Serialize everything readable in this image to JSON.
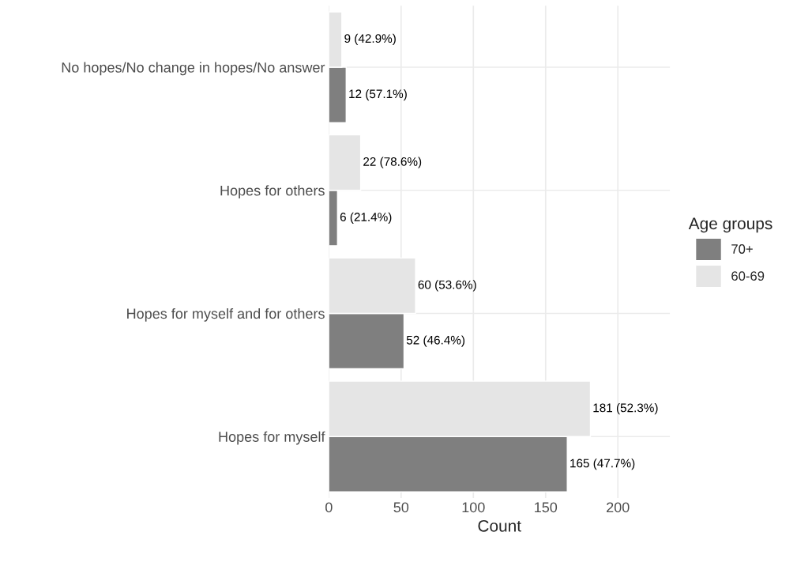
{
  "chart_data": {
    "type": "bar",
    "orientation": "horizontal",
    "xlabel": "Count",
    "legend_title": "Age groups",
    "legend": "right",
    "categories": [
      "No hopes/No change in hopes/No answer",
      "Hopes for others",
      "Hopes for myself and for others",
      "Hopes for myself"
    ],
    "series": [
      {
        "name": "70+",
        "color": "#7f7f7f",
        "values": [
          12,
          6,
          52,
          165
        ],
        "value_labels": [
          "12 (57.1%)",
          "6 (21.4%)",
          "52 (46.4%)",
          "165 (47.7%)"
        ]
      },
      {
        "name": "60-69",
        "color": "#e5e5e5",
        "values": [
          9,
          22,
          60,
          181
        ],
        "value_labels": [
          "9 (42.9%)",
          "22 (78.6%)",
          "60 (53.6%)",
          "181 (52.3%)"
        ]
      }
    ],
    "xlim": [
      0,
      236
    ],
    "xticks": [
      0,
      50,
      100,
      150,
      200
    ],
    "grid": true
  }
}
